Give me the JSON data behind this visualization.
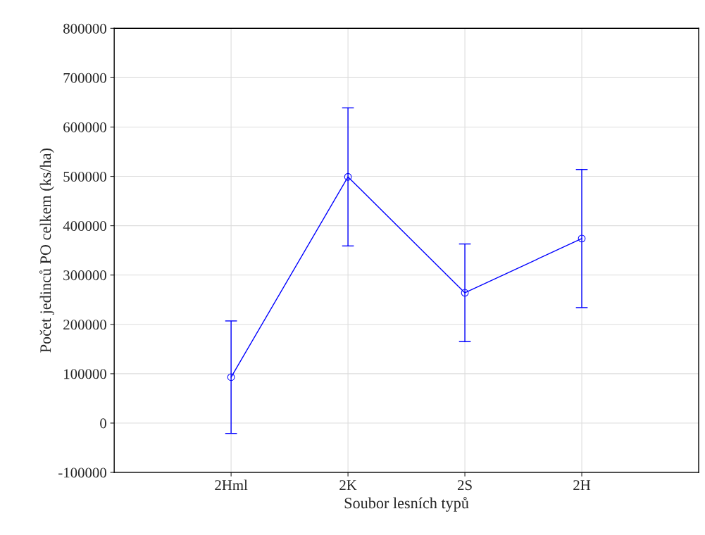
{
  "chart_data": {
    "type": "line",
    "xlabel": "Soubor lesních typů",
    "ylabel": "Počet jedinců PO celkem (ks/ha)",
    "categories": [
      "2Hml",
      "2K",
      "2S",
      "2H"
    ],
    "series": [
      {
        "color": "#0000ff",
        "values": [
          93000,
          499000,
          264000,
          374000
        ],
        "errors": [
          114000,
          140000,
          99000,
          140000
        ]
      }
    ],
    "ylim": [
      -100000,
      800000
    ],
    "yticks": [
      -100000,
      0,
      100000,
      200000,
      300000,
      400000,
      500000,
      600000,
      700000,
      800000
    ],
    "grid": true,
    "marker": "circle",
    "line_style": "solid"
  }
}
